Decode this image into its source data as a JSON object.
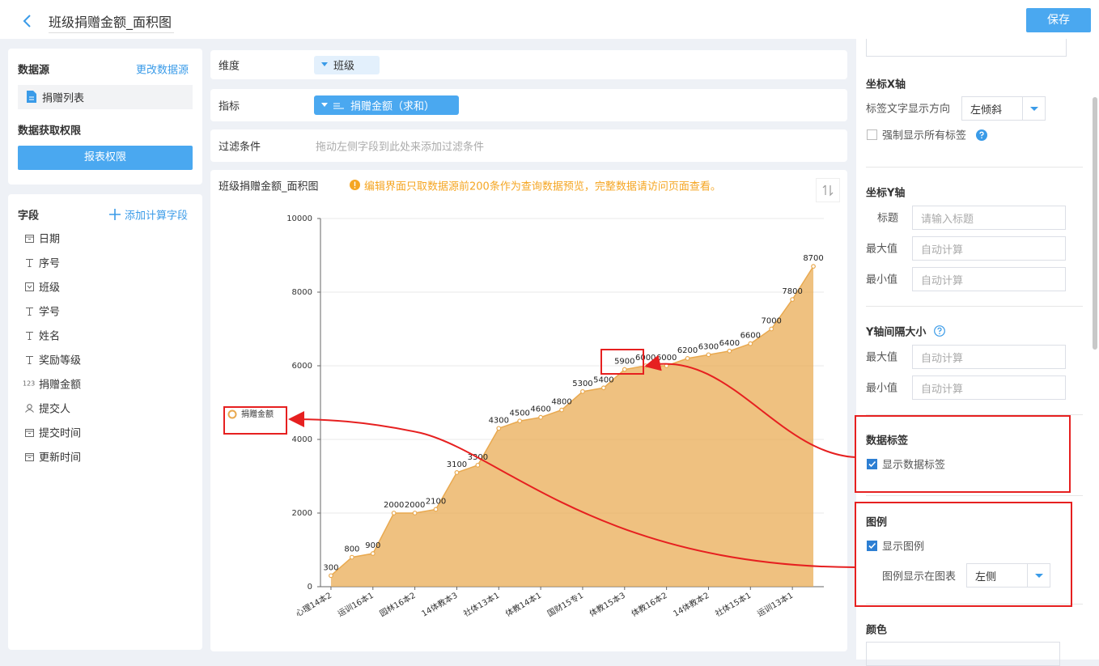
{
  "header": {
    "title": "班级捐赠金额_面积图",
    "save": "保存"
  },
  "sidebar": {
    "datasource_label": "数据源",
    "change_datasource": "更改数据源",
    "dataset": "捐赠列表",
    "permission_label": "数据获取权限",
    "permission_button": "报表权限",
    "fields_label": "字段",
    "add_field": "添加计算字段",
    "fields": [
      {
        "name": "日期"
      },
      {
        "name": "序号"
      },
      {
        "name": "班级"
      },
      {
        "name": "学号"
      },
      {
        "name": "姓名"
      },
      {
        "name": "奖励等级"
      },
      {
        "name": "捐赠金额",
        "icon": "123"
      },
      {
        "name": "提交人"
      },
      {
        "name": "提交时间"
      },
      {
        "name": "更新时间"
      }
    ]
  },
  "query": {
    "dimension_label": "维度",
    "dimension": "班级",
    "metric_label": "指标",
    "metric": "捐赠金额（求和）",
    "filter_label": "过滤条件",
    "filter_placeholder": "拖动左侧字段到此处来添加过滤条件"
  },
  "notice": "编辑界面只取数据源前200条作为查询数据预览，完整数据请访问页面查看。",
  "chart_data": {
    "type": "area",
    "title": "班级捐赠金额_面积图",
    "categories": [
      "心理14本2",
      null,
      "运训16本1",
      null,
      "园林16本2",
      null,
      "14体教本3",
      null,
      "社体13本1",
      null,
      "体教14本1",
      null,
      "国财15专1",
      null,
      "体教15本3",
      null,
      "体教16本2",
      null,
      "14体教本2",
      null,
      "社体15本1",
      null,
      "运训13本1",
      null
    ],
    "series": [
      {
        "name": "捐赠金额",
        "color": "#e9a94f",
        "values": [
          300,
          800,
          900,
          2000,
          2000,
          2100,
          3100,
          3300,
          4300,
          4500,
          4600,
          4800,
          5300,
          5400,
          5900,
          6000,
          6000,
          6200,
          6300,
          6400,
          6600,
          7000,
          7800,
          8700
        ]
      }
    ],
    "ylim": [
      0,
      10000
    ],
    "yticks": [
      0,
      2000,
      4000,
      6000,
      8000,
      10000
    ],
    "grid": true,
    "legend": "left",
    "data_labels": true
  },
  "settings": {
    "x_axis": {
      "title": "坐标X轴",
      "direction_label": "标签文字显示方向",
      "direction": "左倾斜",
      "force_labels": "强制显示所有标签"
    },
    "y_axis": {
      "title": "坐标Y轴",
      "name_label": "标题",
      "name_placeholder": "请输入标题",
      "max_label": "最大值",
      "max": "自动计算",
      "min_label": "最小值",
      "min": "自动计算"
    },
    "y_interval": {
      "title": "Y轴间隔大小",
      "max_label": "最大值",
      "max": "自动计算",
      "min_label": "最小值",
      "min": "自动计算"
    },
    "data_labels": {
      "title": "数据标签",
      "show": "显示数据标签"
    },
    "legend": {
      "title": "图例",
      "show": "显示图例",
      "position_label": "图例显示在图表",
      "position": "左侧"
    },
    "color": {
      "title": "颜色"
    }
  }
}
